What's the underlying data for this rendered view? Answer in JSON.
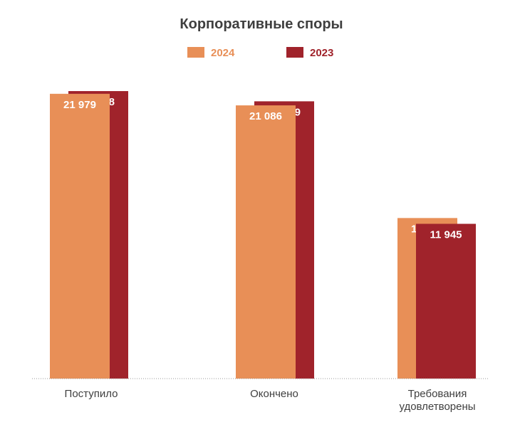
{
  "chart_data": {
    "type": "bar",
    "title": "Корпоративные споры",
    "categories": [
      [
        "Поступило"
      ],
      [
        "Окончено"
      ],
      [
        "Требования",
        "удовлетворены"
      ]
    ],
    "series": [
      {
        "name": "2024",
        "color": "#e88f57",
        "values": [
          21979,
          21086,
          12392
        ],
        "labels": [
          "21 979",
          "21 086",
          "12 392"
        ]
      },
      {
        "name": "2023",
        "color": "#a0232b",
        "values": [
          22188,
          21399,
          11945
        ],
        "labels": [
          "22 188",
          "21 399",
          "11 945"
        ]
      }
    ],
    "ylim": [
      0,
      22188
    ],
    "grid": false,
    "legend": "top-center",
    "overlapping_bars": true,
    "baseline_style": "dotted"
  }
}
